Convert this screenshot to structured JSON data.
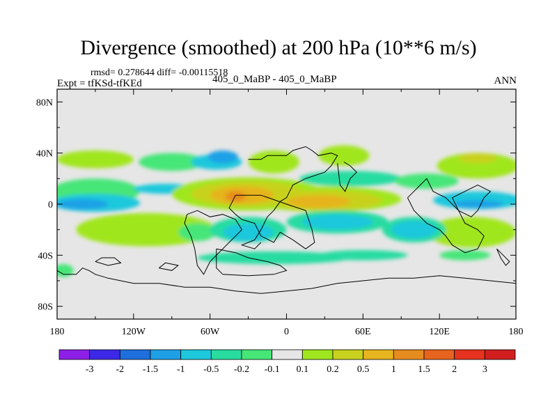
{
  "title": "Divergence (smoothed) at 200 hPa (10**6 m/s)",
  "stats": "rmsd= 0.278644 diff= -0.00115518",
  "experiment": "Expt = tfKSd-tfKEd",
  "case_label": "405_0_MaBP - 405_0_MaBP",
  "season": "ANN",
  "chart_data": {
    "type": "heatmap",
    "title": "Divergence (smoothed) at 200 hPa (10**6 m/s)",
    "x_axis": {
      "range": [
        -180,
        180
      ],
      "ticks": [
        -180,
        -120,
        -60,
        0,
        60,
        120,
        180
      ],
      "tick_labels": [
        "180",
        "120W",
        "60W",
        "0",
        "60E",
        "120E",
        "180"
      ]
    },
    "y_axis": {
      "range": [
        -90,
        90
      ],
      "ticks": [
        80,
        40,
        0,
        -40,
        -80
      ],
      "tick_labels": [
        "80N",
        "40N",
        "0",
        "40S",
        "80S"
      ]
    },
    "colorbar": {
      "colors": [
        "#8c1ee6",
        "#3c28e6",
        "#1e6edc",
        "#1ea0e6",
        "#1ec8dc",
        "#28dca0",
        "#46e678",
        "#e6e6e6",
        "#a0e61e",
        "#c8d21e",
        "#e6b41e",
        "#e68c1e",
        "#e6641e",
        "#e6321e",
        "#d21e1e"
      ],
      "labels": [
        "-3",
        "-2",
        "-1.5",
        "-1",
        "-0.5",
        "-0.2",
        "-0.1",
        "0.1",
        "0.2",
        "0.5",
        "1",
        "1.5",
        "2",
        "3"
      ]
    },
    "background_color": "#e6e6e6",
    "regions": [
      {
        "lon": -150,
        "lat": 35,
        "rlon": 30,
        "rlat": 7,
        "color": "#a0e61e"
      },
      {
        "lon": -90,
        "lat": 33,
        "rlon": 26,
        "rlat": 7,
        "color": "#46e678"
      },
      {
        "lon": -55,
        "lat": 33,
        "rlon": 20,
        "rlat": 6,
        "color": "#1ec8dc"
      },
      {
        "lon": -50,
        "lat": 37,
        "rlon": 12,
        "rlat": 5,
        "color": "#1ea0e6"
      },
      {
        "lon": -10,
        "lat": 33,
        "rlon": 20,
        "rlat": 9,
        "color": "#a0e61e"
      },
      {
        "lon": 45,
        "lat": 38,
        "rlon": 20,
        "rlat": 8,
        "color": "#a0e61e"
      },
      {
        "lon": 150,
        "lat": 30,
        "rlon": 32,
        "rlat": 10,
        "color": "#a0e61e"
      },
      {
        "lon": 150,
        "lat": 36,
        "rlon": 15,
        "rlat": 4,
        "color": "#c8d21e"
      },
      {
        "lon": 50,
        "lat": 20,
        "rlon": 40,
        "rlat": 6,
        "color": "#28dca0"
      },
      {
        "lon": 110,
        "lat": 18,
        "rlon": 25,
        "rlat": 6,
        "color": "#46e678"
      },
      {
        "lon": -150,
        "lat": 10,
        "rlon": 35,
        "rlat": 10,
        "color": "#46e678"
      },
      {
        "lon": -150,
        "lat": 1,
        "rlon": 35,
        "rlat": 7,
        "color": "#1ec8dc"
      },
      {
        "lon": -160,
        "lat": 0,
        "rlon": 20,
        "rlat": 4,
        "color": "#1ea0e6"
      },
      {
        "lon": -95,
        "lat": 12,
        "rlon": 25,
        "rlat": 4,
        "color": "#1ec8dc"
      },
      {
        "lon": 150,
        "lat": 3,
        "rlon": 35,
        "rlat": 7,
        "color": "#1ec8dc"
      },
      {
        "lon": 150,
        "lat": 0,
        "rlon": 20,
        "rlat": 3,
        "color": "#1ea0e6"
      },
      {
        "lon": -30,
        "lat": 8,
        "rlon": 60,
        "rlat": 13,
        "color": "#a0e61e"
      },
      {
        "lon": 30,
        "lat": 4,
        "rlon": 60,
        "rlat": 10,
        "color": "#a0e61e"
      },
      {
        "lon": -30,
        "lat": 8,
        "rlon": 45,
        "rlat": 10,
        "color": "#c8d21e"
      },
      {
        "lon": 30,
        "lat": 3,
        "rlon": 45,
        "rlat": 8,
        "color": "#c8d21e"
      },
      {
        "lon": -35,
        "lat": 7,
        "rlon": 25,
        "rlat": 7,
        "color": "#e6b41e"
      },
      {
        "lon": 25,
        "lat": 2,
        "rlon": 25,
        "rlat": 5,
        "color": "#e6b41e"
      },
      {
        "lon": -40,
        "lat": 6,
        "rlon": 8,
        "rlat": 4,
        "color": "#e68c1e"
      },
      {
        "lon": -110,
        "lat": -20,
        "rlon": 55,
        "rlat": 13,
        "color": "#a0e61e"
      },
      {
        "lon": 145,
        "lat": -22,
        "rlon": 35,
        "rlat": 12,
        "color": "#a0e61e"
      },
      {
        "lon": -70,
        "lat": -22,
        "rlon": 15,
        "rlat": 7,
        "color": "#46e678"
      },
      {
        "lon": -30,
        "lat": -20,
        "rlon": 30,
        "rlat": 10,
        "color": "#28dca0"
      },
      {
        "lon": 40,
        "lat": -14,
        "rlon": 40,
        "rlat": 9,
        "color": "#28dca0"
      },
      {
        "lon": 100,
        "lat": -20,
        "rlon": 25,
        "rlat": 10,
        "color": "#28dca0"
      },
      {
        "lon": -30,
        "lat": -22,
        "rlon": 20,
        "rlat": 7,
        "color": "#1ec8dc"
      },
      {
        "lon": 40,
        "lat": -14,
        "rlon": 28,
        "rlat": 6,
        "color": "#1ec8dc"
      },
      {
        "lon": 100,
        "lat": -20,
        "rlon": 18,
        "rlat": 7,
        "color": "#1ec8dc"
      },
      {
        "lon": -10,
        "lat": -42,
        "rlon": 60,
        "rlat": 5,
        "color": "#28dca0"
      },
      {
        "lon": 60,
        "lat": -40,
        "rlon": 35,
        "rlat": 4,
        "color": "#28dca0"
      },
      {
        "lon": 140,
        "lat": -40,
        "rlon": 20,
        "rlat": 4,
        "color": "#46e678"
      },
      {
        "lon": -175,
        "lat": -52,
        "rlon": 8,
        "rlat": 5,
        "color": "#46e678"
      }
    ],
    "coastlines": [
      [
        [
          -30,
          35
        ],
        [
          -20,
          35
        ],
        [
          -15,
          38
        ],
        [
          0,
          38
        ],
        [
          5,
          42
        ],
        [
          15,
          45
        ],
        [
          20,
          42
        ],
        [
          25,
          38
        ],
        [
          35,
          40
        ],
        [
          40,
          38
        ],
        [
          35,
          30
        ],
        [
          30,
          25
        ],
        [
          15,
          20
        ],
        [
          5,
          15
        ],
        [
          0,
          5
        ],
        [
          -5,
          2
        ],
        [
          -10,
          -5
        ],
        [
          -15,
          -10
        ],
        [
          -20,
          -20
        ],
        [
          -25,
          -28
        ],
        [
          -35,
          -32
        ],
        [
          -25,
          -35
        ],
        [
          -20,
          -30
        ]
      ],
      [
        [
          40,
          32
        ],
        [
          42,
          15
        ],
        [
          46,
          10
        ],
        [
          50,
          20
        ],
        [
          55,
          25
        ],
        [
          50,
          30
        ],
        [
          45,
          33
        ]
      ],
      [
        [
          -70,
          -5
        ],
        [
          -60,
          -10
        ],
        [
          -50,
          -8
        ],
        [
          -40,
          -12
        ],
        [
          -35,
          -20
        ],
        [
          -40,
          -25
        ],
        [
          -45,
          -30
        ],
        [
          -55,
          -40
        ],
        [
          -60,
          -45
        ],
        [
          -65,
          -55
        ],
        [
          -70,
          -48
        ],
        [
          -72,
          -35
        ],
        [
          -75,
          -25
        ],
        [
          -80,
          -15
        ],
        [
          -78,
          -8
        ],
        [
          -70,
          -5
        ]
      ],
      [
        [
          -40,
          7
        ],
        [
          -20,
          7
        ],
        [
          0,
          0
        ],
        [
          15,
          -5
        ],
        [
          20,
          -20
        ],
        [
          22,
          -30
        ],
        [
          15,
          -35
        ],
        [
          5,
          -28
        ],
        [
          -5,
          -22
        ],
        [
          -10,
          -30
        ],
        [
          -20,
          -25
        ],
        [
          -25,
          -15
        ],
        [
          -35,
          -12
        ],
        [
          -40,
          -8
        ],
        [
          -45,
          -3
        ],
        [
          -40,
          7
        ]
      ],
      [
        [
          95,
          5
        ],
        [
          100,
          10
        ],
        [
          105,
          15
        ],
        [
          110,
          20
        ],
        [
          115,
          10
        ],
        [
          125,
          5
        ],
        [
          135,
          -5
        ],
        [
          140,
          -15
        ],
        [
          150,
          -20
        ],
        [
          155,
          -25
        ],
        [
          150,
          -35
        ],
        [
          140,
          -38
        ],
        [
          130,
          -32
        ],
        [
          125,
          -25
        ],
        [
          120,
          -20
        ],
        [
          110,
          -15
        ],
        [
          100,
          -5
        ],
        [
          95,
          5
        ]
      ],
      [
        [
          130,
          5
        ],
        [
          140,
          10
        ],
        [
          150,
          15
        ],
        [
          160,
          10
        ],
        [
          155,
          5
        ],
        [
          150,
          -5
        ],
        [
          145,
          -10
        ],
        [
          135,
          -5
        ],
        [
          130,
          5
        ]
      ],
      [
        [
          165,
          -35
        ],
        [
          170,
          -40
        ],
        [
          175,
          -45
        ],
        [
          172,
          -48
        ],
        [
          168,
          -42
        ],
        [
          165,
          -35
        ]
      ],
      [
        [
          -180,
          -52
        ],
        [
          -175,
          -55
        ],
        [
          -165,
          -55
        ],
        [
          -160,
          -50
        ],
        [
          -155,
          -52
        ],
        [
          -150,
          -55
        ],
        [
          -140,
          -58
        ],
        [
          -120,
          -62
        ],
        [
          -100,
          -62
        ],
        [
          -80,
          -65
        ],
        [
          -60,
          -65
        ],
        [
          -40,
          -68
        ],
        [
          -20,
          -70
        ],
        [
          0,
          -68
        ],
        [
          20,
          -66
        ],
        [
          40,
          -62
        ],
        [
          60,
          -60
        ],
        [
          80,
          -58
        ],
        [
          100,
          -58
        ],
        [
          120,
          -56
        ],
        [
          140,
          -58
        ],
        [
          160,
          -60
        ],
        [
          180,
          -62
        ]
      ],
      [
        [
          -150,
          -45
        ],
        [
          -140,
          -48
        ],
        [
          -130,
          -46
        ],
        [
          -135,
          -42
        ],
        [
          -145,
          -42
        ],
        [
          -150,
          -45
        ]
      ],
      [
        [
          -100,
          -50
        ],
        [
          -90,
          -52
        ],
        [
          -85,
          -48
        ],
        [
          -95,
          -46
        ],
        [
          -100,
          -50
        ]
      ],
      [
        [
          -55,
          -35
        ],
        [
          -40,
          -38
        ],
        [
          -30,
          -42
        ],
        [
          -15,
          -45
        ],
        [
          -5,
          -48
        ],
        [
          0,
          -52
        ],
        [
          -10,
          -55
        ],
        [
          -30,
          -56
        ],
        [
          -50,
          -55
        ],
        [
          -55,
          -50
        ],
        [
          -55,
          -35
        ]
      ]
    ]
  }
}
